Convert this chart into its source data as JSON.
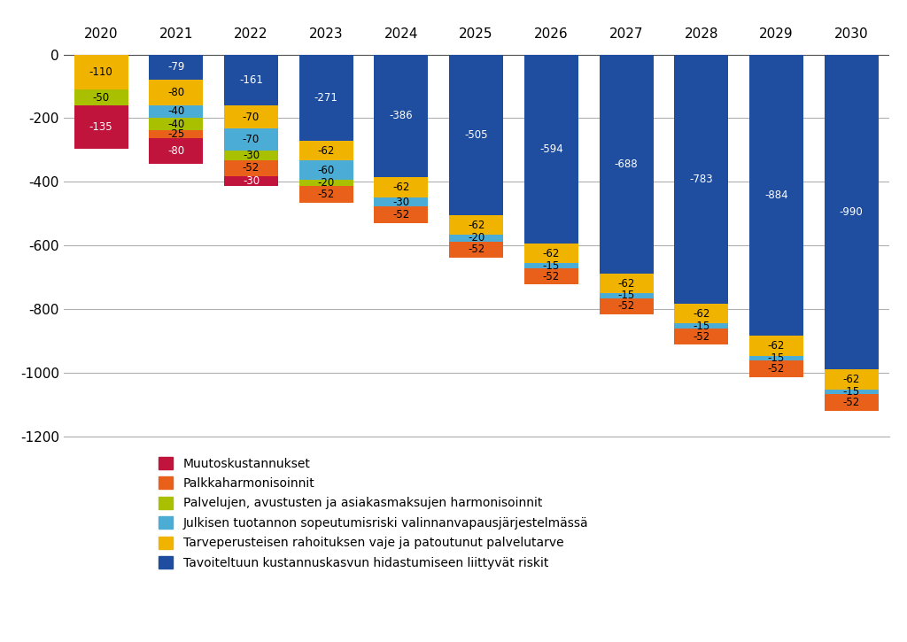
{
  "years": [
    "2020",
    "2021",
    "2022",
    "2023",
    "2024",
    "2025",
    "2026",
    "2027",
    "2028",
    "2029",
    "2030"
  ],
  "series": {
    "Muutoskustannukset": {
      "color": "#C0143C",
      "values": [
        -135,
        -80,
        -30,
        0,
        0,
        0,
        0,
        0,
        0,
        0,
        0
      ]
    },
    "Palkkaharmonisoinnit": {
      "color": "#E8601A",
      "values": [
        0,
        -25,
        -52,
        -52,
        -52,
        -52,
        -52,
        -52,
        -52,
        -52,
        -52
      ]
    },
    "Palvelujen, avustusten ja asiakasmaksujen harmonisoinnit": {
      "color": "#A8C000",
      "values": [
        -50,
        -40,
        -30,
        -20,
        0,
        0,
        0,
        0,
        0,
        0,
        0
      ]
    },
    "Julkisen tuotannon sopeutumisriski valinnanvapausjärjestelmässä": {
      "color": "#4BACD6",
      "values": [
        0,
        -40,
        -70,
        -60,
        -30,
        -20,
        -15,
        -15,
        -15,
        -15,
        -15
      ]
    },
    "Tarveperusteisen rahoituksen vaje ja patoutunut palvelutarve": {
      "color": "#F0B400",
      "values": [
        -110,
        -80,
        -70,
        -62,
        -62,
        -62,
        -62,
        -62,
        -62,
        -62,
        -62
      ]
    },
    "Tavoiteltuun kustannuskasvun hidastumiseen liittyvät riskit": {
      "color": "#1F4EA1",
      "values": [
        0,
        -79,
        -161,
        -271,
        -386,
        -505,
        -594,
        -688,
        -783,
        -884,
        -990
      ]
    }
  },
  "series_order": [
    "Tavoiteltuun kustannuskasvun hidastumiseen liittyvät riskit",
    "Tarveperusteisen rahoituksen vaje ja patoutunut palvelutarve",
    "Julkisen tuotannon sopeutumisriski valinnanvapausjärjestelmässä",
    "Palvelujen, avustusten ja asiakasmaksujen harmonisoinnit",
    "Palkkaharmonisoinnit",
    "Muutoskustannukset"
  ],
  "legend_order": [
    "Muutoskustannukset",
    "Palkkaharmonisoinnit",
    "Palvelujen, avustusten ja asiakasmaksujen harmonisoinnit",
    "Julkisen tuotannon sopeutumisriski valinnanvapausjärjestelmässä",
    "Tarveperusteisen rahoituksen vaje ja patoutunut palvelutarve",
    "Tavoiteltuun kustannuskasvun hidastumiseen liittyvät riskit"
  ],
  "white_label_colors": [
    "#1F4EA1",
    "#C0143C"
  ],
  "ylim": [
    -1200,
    30
  ],
  "yticks": [
    0,
    -200,
    -400,
    -600,
    -800,
    -1000,
    -1200
  ],
  "background_color": "#ffffff",
  "grid_color": "#b0b0b0",
  "bar_width": 0.72,
  "label_fontsize": 8.5,
  "tick_fontsize": 11,
  "legend_fontsize": 10
}
